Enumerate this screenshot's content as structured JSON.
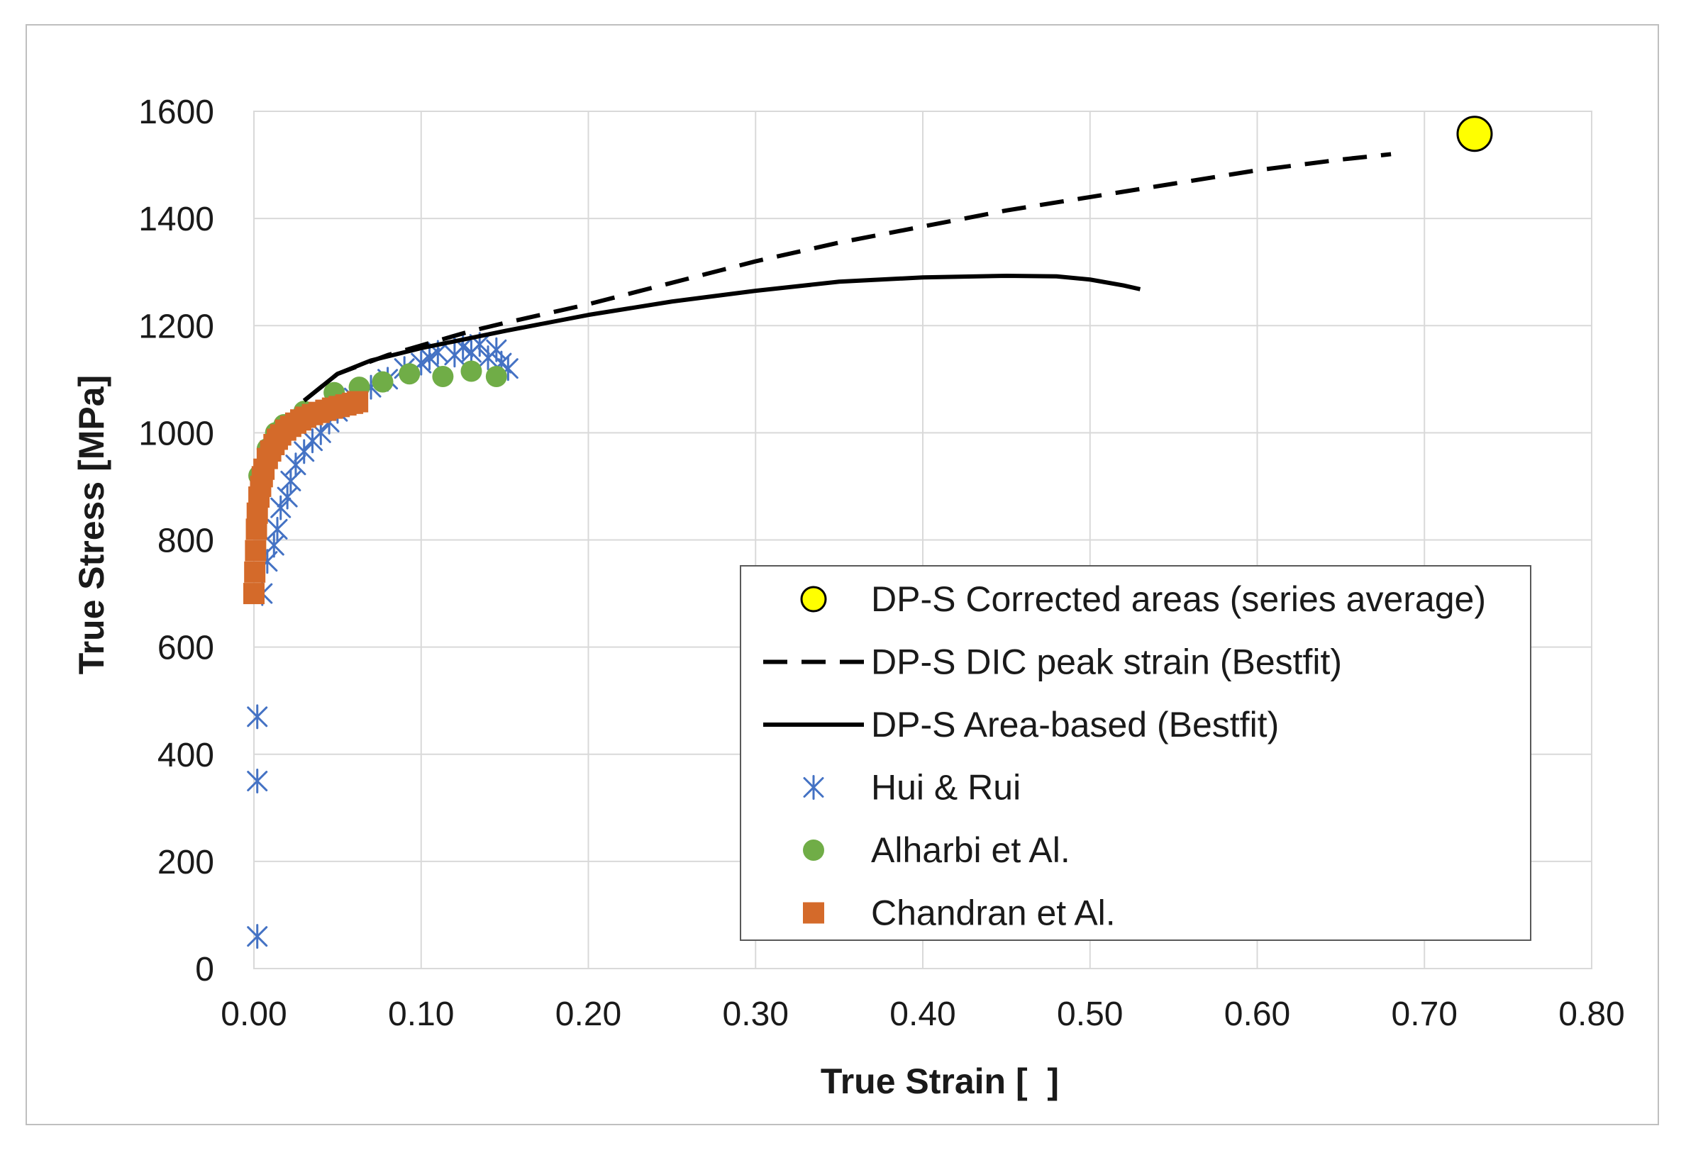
{
  "chart_data": {
    "type": "scatter",
    "title": "",
    "xlabel": "True Strain [  ]",
    "ylabel": "True Stress [MPa]",
    "xlim": [
      0,
      0.8
    ],
    "ylim": [
      0,
      1600
    ],
    "x_ticks": [
      "0.00",
      "0.10",
      "0.20",
      "0.30",
      "0.40",
      "0.50",
      "0.60",
      "0.70",
      "0.80"
    ],
    "y_ticks": [
      "0",
      "200",
      "400",
      "600",
      "800",
      "1000",
      "1200",
      "1400",
      "1600"
    ],
    "grid": true,
    "legend_position": "bottom-right",
    "series": [
      {
        "name": "DP-S Corrected areas (series average)",
        "kind": "marker-circle-large",
        "color": "#ffff00",
        "edge_color": "#000000",
        "x": [
          0.73
        ],
        "y": [
          1558
        ]
      },
      {
        "name": "DP-S DIC peak strain (Bestfit)",
        "kind": "line-dashed",
        "color": "#000000",
        "x": [
          0.03,
          0.05,
          0.08,
          0.1,
          0.13,
          0.15,
          0.2,
          0.25,
          0.3,
          0.35,
          0.4,
          0.45,
          0.5,
          0.55,
          0.6,
          0.65,
          0.68
        ],
        "y": [
          1060,
          1110,
          1145,
          1163,
          1190,
          1205,
          1240,
          1280,
          1320,
          1355,
          1385,
          1415,
          1440,
          1465,
          1490,
          1510,
          1520
        ]
      },
      {
        "name": "DP-S Area-based (Bestfit)",
        "kind": "line-solid",
        "color": "#000000",
        "x": [
          0.03,
          0.05,
          0.07,
          0.1,
          0.15,
          0.2,
          0.25,
          0.3,
          0.35,
          0.4,
          0.45,
          0.48,
          0.5,
          0.52,
          0.53
        ],
        "y": [
          1060,
          1110,
          1135,
          1158,
          1190,
          1220,
          1245,
          1265,
          1282,
          1290,
          1293,
          1292,
          1286,
          1275,
          1268
        ]
      },
      {
        "name": "Hui & Rui",
        "kind": "marker-asterisk",
        "color": "#4472c4",
        "x": [
          0.002,
          0.002,
          0.002,
          0.005,
          0.008,
          0.012,
          0.014,
          0.016,
          0.02,
          0.022,
          0.025,
          0.03,
          0.035,
          0.04,
          0.045,
          0.05,
          0.06,
          0.07,
          0.08,
          0.09,
          0.1,
          0.105,
          0.11,
          0.12,
          0.125,
          0.13,
          0.135,
          0.14,
          0.145,
          0.148,
          0.152
        ],
        "y": [
          60,
          350,
          470,
          700,
          760,
          790,
          820,
          860,
          880,
          910,
          940,
          965,
          985,
          1000,
          1020,
          1040,
          1065,
          1085,
          1100,
          1120,
          1130,
          1140,
          1150,
          1145,
          1160,
          1150,
          1165,
          1140,
          1155,
          1130,
          1120
        ]
      },
      {
        "name": "Alharbi et Al.",
        "kind": "marker-circle",
        "color": "#70ad47",
        "x": [
          0.003,
          0.008,
          0.013,
          0.018,
          0.03,
          0.048,
          0.063,
          0.077,
          0.093,
          0.113,
          0.13,
          0.145
        ],
        "y": [
          920,
          970,
          1000,
          1015,
          1040,
          1075,
          1085,
          1095,
          1110,
          1105,
          1115,
          1105
        ]
      },
      {
        "name": "Chandran et Al.",
        "kind": "marker-square",
        "color": "#d46a2a",
        "x": [
          0.0,
          0.0005,
          0.001,
          0.0015,
          0.002,
          0.003,
          0.004,
          0.005,
          0.006,
          0.008,
          0.01,
          0.012,
          0.014,
          0.016,
          0.019,
          0.022,
          0.025,
          0.028,
          0.031,
          0.035,
          0.039,
          0.043,
          0.047,
          0.051,
          0.055,
          0.059,
          0.062
        ],
        "y": [
          700,
          740,
          780,
          820,
          850,
          880,
          900,
          918,
          932,
          952,
          966,
          978,
          988,
          996,
          1005,
          1012,
          1018,
          1024,
          1029,
          1034,
          1038,
          1042,
          1046,
          1049,
          1052,
          1055,
          1058
        ]
      }
    ]
  }
}
